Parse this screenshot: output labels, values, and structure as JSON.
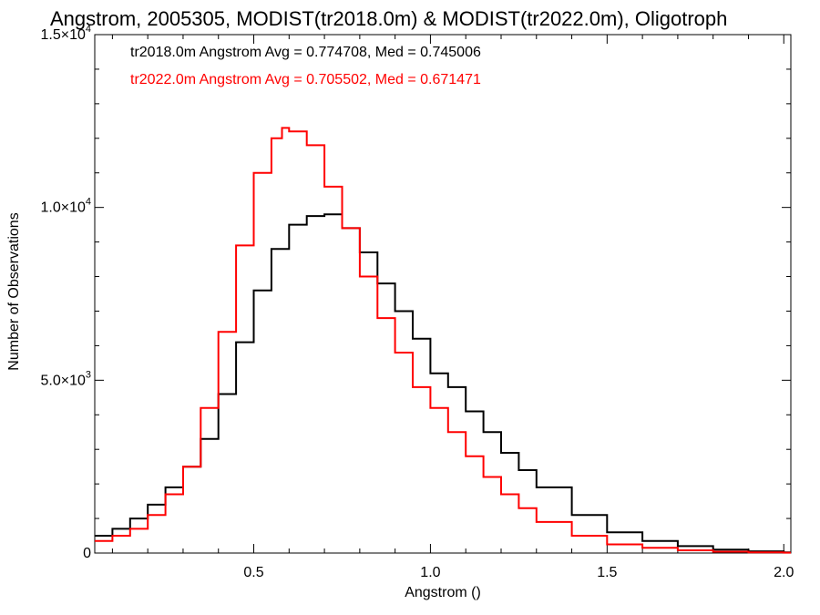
{
  "chart_data": {
    "type": "line",
    "title": "Angstrom, 2005305, MODIST(tr2018.0m) & MODIST(tr2022.0m), Oligotroph",
    "xlabel": "Angstrom ()",
    "ylabel": "Number of Observations",
    "xlim": [
      0.05,
      2.02
    ],
    "ylim": [
      0,
      15000
    ],
    "grid": false,
    "step": true,
    "x_ticks": [
      {
        "value": 0.5,
        "label": "0.5"
      },
      {
        "value": 1.0,
        "label": "1.0"
      },
      {
        "value": 1.5,
        "label": "1.5"
      },
      {
        "value": 2.0,
        "label": "2.0"
      }
    ],
    "y_ticks": [
      {
        "value": 0,
        "label": "0",
        "exp": ""
      },
      {
        "value": 5000,
        "label": "5.0×10",
        "exp": "3"
      },
      {
        "value": 10000,
        "label": "1.0×10",
        "exp": "4"
      },
      {
        "value": 15000,
        "label": "1.5×10",
        "exp": "4"
      }
    ],
    "series": [
      {
        "name": "tr2018.0m",
        "annotation": "tr2018.0m Angstrom Avg = 0.774708, Med = 0.745006",
        "color": "#000000",
        "x": [
          0.05,
          0.1,
          0.15,
          0.2,
          0.25,
          0.3,
          0.35,
          0.4,
          0.45,
          0.5,
          0.55,
          0.6,
          0.65,
          0.7,
          0.75,
          0.8,
          0.85,
          0.9,
          0.95,
          1.0,
          1.05,
          1.1,
          1.15,
          1.2,
          1.25,
          1.3,
          1.4,
          1.5,
          1.6,
          1.7,
          1.8,
          1.9,
          2.0
        ],
        "y": [
          500,
          700,
          1000,
          1400,
          1900,
          2500,
          3300,
          4600,
          6100,
          7600,
          8800,
          9500,
          9750,
          9800,
          9400,
          8700,
          7800,
          7000,
          6200,
          5200,
          4800,
          4100,
          3500,
          2900,
          2400,
          1900,
          1100,
          600,
          350,
          200,
          100,
          50,
          20
        ]
      },
      {
        "name": "tr2022.0m",
        "annotation": "tr2022.0m Angstrom Avg = 0.705502, Med = 0.671471",
        "color": "#ff0000",
        "x": [
          0.05,
          0.1,
          0.15,
          0.2,
          0.25,
          0.3,
          0.35,
          0.4,
          0.45,
          0.5,
          0.55,
          0.58,
          0.6,
          0.65,
          0.7,
          0.75,
          0.8,
          0.85,
          0.9,
          0.95,
          1.0,
          1.05,
          1.1,
          1.15,
          1.2,
          1.25,
          1.3,
          1.4,
          1.5,
          1.6,
          1.7,
          1.8,
          1.9,
          2.0
        ],
        "y": [
          350,
          500,
          700,
          1100,
          1700,
          2500,
          4200,
          6400,
          8900,
          11000,
          12000,
          12300,
          12200,
          11800,
          10600,
          9400,
          8000,
          6800,
          5800,
          4800,
          4200,
          3500,
          2800,
          2200,
          1700,
          1300,
          900,
          500,
          250,
          150,
          80,
          40,
          20,
          10
        ]
      }
    ]
  }
}
